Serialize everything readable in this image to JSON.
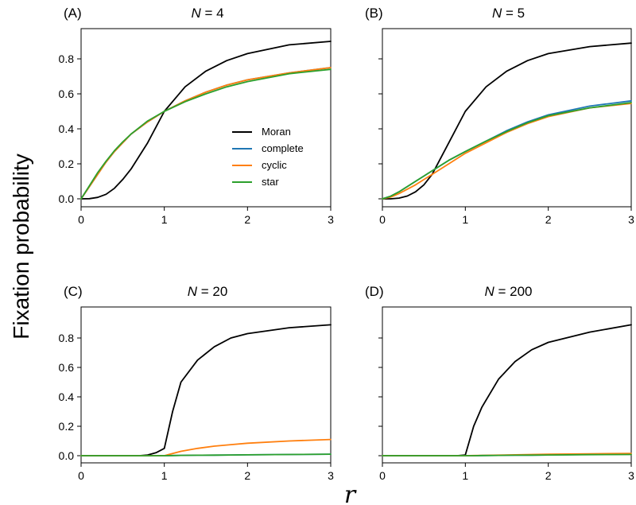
{
  "figure": {
    "ylabel": "Fixation probability",
    "xlabel": "r"
  },
  "legend": {
    "items": [
      {
        "label": "Moran",
        "color": "#000000"
      },
      {
        "label": "complete",
        "color": "#1f77b4"
      },
      {
        "label": "cyclic",
        "color": "#ff7f0e"
      },
      {
        "label": "star",
        "color": "#2ca02c"
      }
    ]
  },
  "chart_data": [
    {
      "type": "line",
      "panel": "(A)",
      "title_var": "N",
      "title_eq": " = ",
      "title_val": "4",
      "xlim": [
        0,
        3
      ],
      "ylim": [
        -0.01,
        0.95
      ],
      "xticks": [
        "0",
        "1",
        "2",
        "3"
      ],
      "yticks": [
        "0.0",
        "0.2",
        "0.4",
        "0.6",
        "0.8"
      ],
      "x": [
        0,
        0.1,
        0.2,
        0.3,
        0.4,
        0.5,
        0.6,
        0.8,
        1.0,
        1.25,
        1.5,
        1.75,
        2.0,
        2.5,
        3.0
      ],
      "series": [
        {
          "name": "Moran",
          "values": [
            0.0,
            0.001,
            0.008,
            0.026,
            0.06,
            0.11,
            0.17,
            0.32,
            0.5,
            0.64,
            0.73,
            0.79,
            0.83,
            0.88,
            0.9
          ]
        },
        {
          "name": "complete",
          "values": [
            0.0,
            0.07,
            0.14,
            0.21,
            0.27,
            0.32,
            0.37,
            0.44,
            0.5,
            0.56,
            0.61,
            0.65,
            0.68,
            0.72,
            0.75
          ]
        },
        {
          "name": "cyclic",
          "values": [
            0.0,
            0.07,
            0.14,
            0.21,
            0.27,
            0.32,
            0.37,
            0.44,
            0.5,
            0.56,
            0.61,
            0.65,
            0.68,
            0.72,
            0.75
          ]
        },
        {
          "name": "star",
          "values": [
            0.0,
            0.075,
            0.15,
            0.215,
            0.275,
            0.325,
            0.37,
            0.445,
            0.5,
            0.555,
            0.6,
            0.64,
            0.67,
            0.715,
            0.74
          ]
        }
      ],
      "show_legend": true
    },
    {
      "type": "line",
      "panel": "(B)",
      "title_var": "N",
      "title_eq": " = ",
      "title_val": "5",
      "xlim": [
        0,
        3
      ],
      "ylim": [
        -0.01,
        0.95
      ],
      "xticks": [
        "0",
        "1",
        "2",
        "3"
      ],
      "yticks": [
        "0.0",
        "0.2",
        "0.4",
        "0.6",
        "0.8"
      ],
      "x": [
        0,
        0.1,
        0.2,
        0.3,
        0.4,
        0.5,
        0.6,
        0.8,
        1.0,
        1.25,
        1.5,
        1.75,
        2.0,
        2.5,
        3.0
      ],
      "series": [
        {
          "name": "Moran",
          "values": [
            0.0,
            0.0,
            0.004,
            0.016,
            0.04,
            0.08,
            0.14,
            0.32,
            0.5,
            0.64,
            0.73,
            0.79,
            0.83,
            0.87,
            0.89
          ]
        },
        {
          "name": "complete",
          "values": [
            0.0,
            0.015,
            0.04,
            0.07,
            0.1,
            0.13,
            0.16,
            0.22,
            0.27,
            0.33,
            0.39,
            0.44,
            0.48,
            0.53,
            0.56
          ]
        },
        {
          "name": "cyclic",
          "values": [
            0.0,
            0.01,
            0.03,
            0.055,
            0.08,
            0.11,
            0.14,
            0.2,
            0.26,
            0.32,
            0.38,
            0.43,
            0.47,
            0.52,
            0.545
          ]
        },
        {
          "name": "star",
          "values": [
            0.0,
            0.015,
            0.04,
            0.07,
            0.1,
            0.13,
            0.16,
            0.22,
            0.27,
            0.33,
            0.385,
            0.435,
            0.475,
            0.52,
            0.55
          ]
        }
      ],
      "show_legend": false
    },
    {
      "type": "line",
      "panel": "(C)",
      "title_var": "N",
      "title_eq": " = ",
      "title_val": "20",
      "xlim": [
        0,
        3
      ],
      "ylim": [
        -0.01,
        0.95
      ],
      "xticks": [
        "0",
        "1",
        "2",
        "3"
      ],
      "yticks": [
        "0.0",
        "0.2",
        "0.4",
        "0.6",
        "0.8"
      ],
      "x": [
        0,
        0.5,
        0.7,
        0.8,
        0.9,
        1.0,
        1.1,
        1.2,
        1.4,
        1.6,
        1.8,
        2.0,
        2.5,
        3.0
      ],
      "series": [
        {
          "name": "Moran",
          "values": [
            0.0,
            0.0,
            0.0,
            0.005,
            0.02,
            0.05,
            0.3,
            0.5,
            0.65,
            0.74,
            0.8,
            0.83,
            0.87,
            0.89
          ]
        },
        {
          "name": "complete",
          "values": [
            0.0,
            0.0,
            0.0,
            0.0,
            0.0,
            0.0,
            0.001,
            0.002,
            0.003,
            0.004,
            0.005,
            0.006,
            0.008,
            0.01
          ]
        },
        {
          "name": "cyclic",
          "values": [
            0.0,
            0.0,
            0.0,
            0.0,
            0.0,
            0.0,
            0.015,
            0.03,
            0.05,
            0.065,
            0.075,
            0.085,
            0.1,
            0.11
          ]
        },
        {
          "name": "star",
          "values": [
            0.0,
            0.0,
            0.0,
            0.0,
            0.0,
            0.0,
            0.001,
            0.002,
            0.003,
            0.004,
            0.005,
            0.006,
            0.008,
            0.01
          ]
        }
      ],
      "show_legend": false
    },
    {
      "type": "line",
      "panel": "(D)",
      "title_var": "N",
      "title_eq": " = ",
      "title_val": "200",
      "xlim": [
        0,
        3
      ],
      "ylim": [
        -0.01,
        0.95
      ],
      "xticks": [
        "0",
        "1",
        "2",
        "3"
      ],
      "yticks": [
        "0.0",
        "0.2",
        "0.4",
        "0.6",
        "0.8"
      ],
      "x": [
        0,
        0.5,
        0.9,
        1.0,
        1.1,
        1.2,
        1.4,
        1.6,
        1.8,
        2.0,
        2.5,
        3.0
      ],
      "series": [
        {
          "name": "Moran",
          "values": [
            0.0,
            0.0,
            0.0,
            0.005,
            0.2,
            0.33,
            0.52,
            0.64,
            0.72,
            0.77,
            0.84,
            0.89
          ]
        },
        {
          "name": "complete",
          "values": [
            0.0,
            0.0,
            0.0,
            0.0,
            0.0,
            0.001,
            0.002,
            0.003,
            0.004,
            0.005,
            0.008,
            0.01
          ]
        },
        {
          "name": "cyclic",
          "values": [
            0.0,
            0.0,
            0.0,
            0.0,
            0.001,
            0.002,
            0.004,
            0.006,
            0.008,
            0.01,
            0.013,
            0.015
          ]
        },
        {
          "name": "star",
          "values": [
            0.0,
            0.0,
            0.0,
            0.0,
            0.0,
            0.001,
            0.002,
            0.003,
            0.004,
            0.005,
            0.007,
            0.008
          ]
        }
      ],
      "show_legend": false
    }
  ]
}
